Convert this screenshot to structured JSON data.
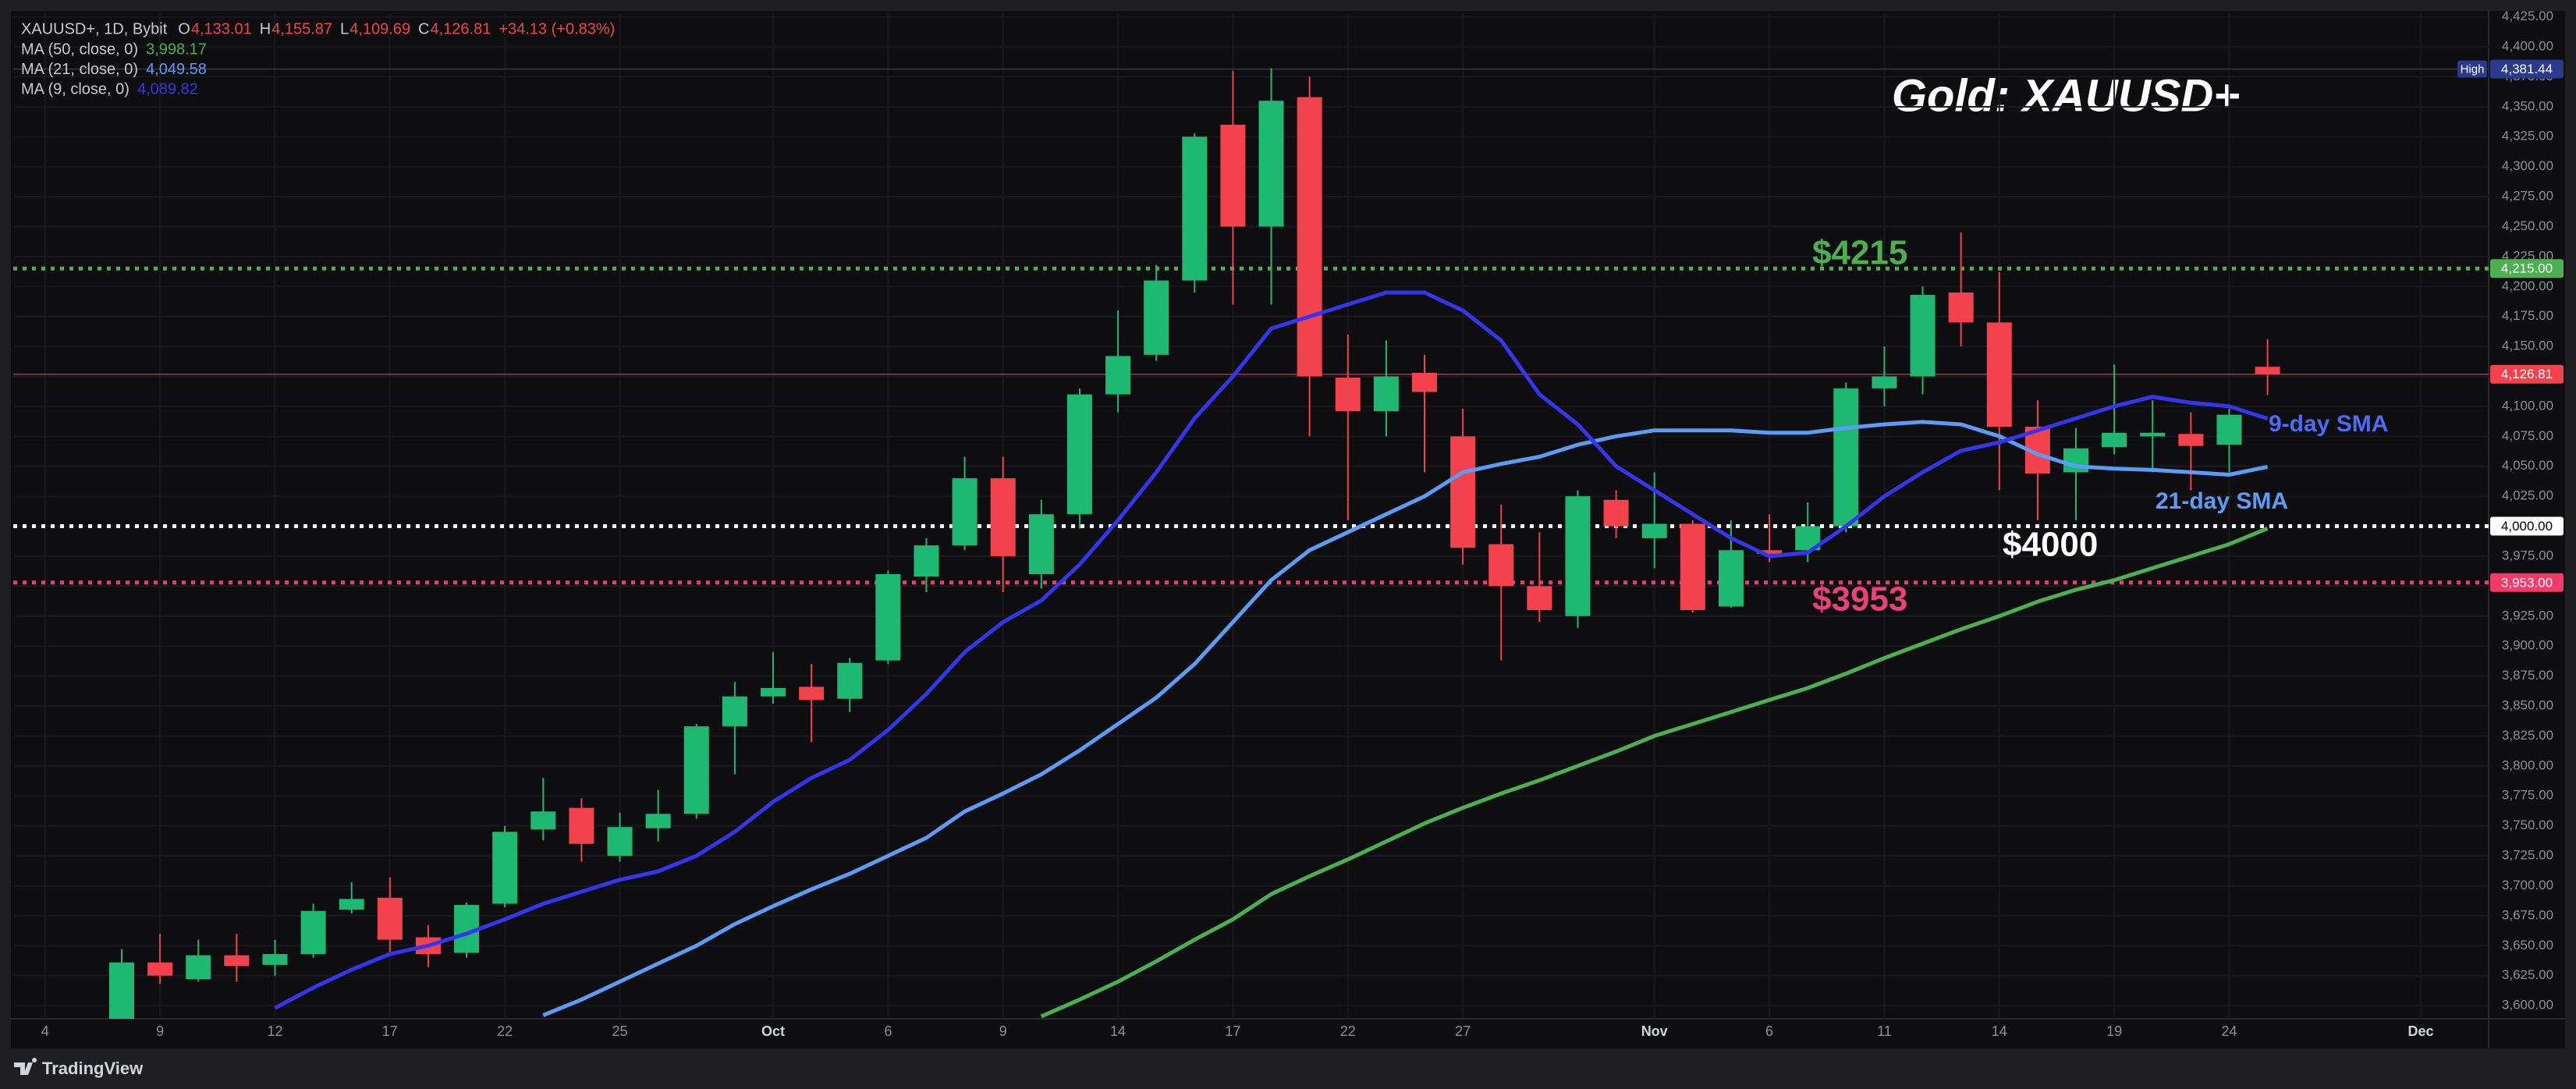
{
  "chart_data": {
    "type": "candlestick",
    "title": "Gold: XAUUSD+",
    "symbol": "XAUUSD+, 1D, Bybit",
    "ohlc": [
      {
        "key": "O",
        "label": "4,133.01"
      },
      {
        "key": "H",
        "label": "4,155.87"
      },
      {
        "key": "L",
        "label": "4,109.69"
      },
      {
        "key": "C",
        "label": "4,126.81"
      }
    ],
    "change": "+34.13 (+0.83%)",
    "up_color": "#1fb872",
    "down_color": "#f2424e",
    "open": [
      3587,
      3636,
      3622,
      3642,
      3634,
      3643,
      3680,
      3690,
      3657,
      3644,
      3685,
      3747,
      3765,
      3725,
      3748,
      3760,
      3833,
      3858,
      3866,
      3856,
      3888,
      3958,
      3984,
      4040,
      3960,
      4010,
      4110,
      4143,
      4205,
      4335,
      4250,
      4358,
      4124,
      4096,
      4128,
      4075,
      3985,
      3950,
      3925,
      4022,
      3990,
      4002,
      3933,
      3980,
      3980,
      4000,
      4115,
      4125,
      4195,
      4170,
      4083,
      4045,
      4066,
      4075,
      4077,
      4068,
      4133.01
    ],
    "high": [
      3647,
      3660,
      3655,
      3660,
      3655,
      3685,
      3703,
      3707,
      3667,
      3686,
      3750,
      3790,
      3773,
      3761,
      3780,
      3835,
      3870,
      3895,
      3885,
      3890,
      3963,
      3990,
      4058,
      4058,
      4022,
      4115,
      4180,
      4218,
      4328,
      4380,
      4382,
      4375,
      4160,
      4155,
      4143,
      4098,
      4018,
      3995,
      4030,
      4030,
      4045,
      4005,
      4005,
      4010,
      4020,
      4120,
      4150,
      4200,
      4245,
      4212,
      4105,
      4082,
      4135,
      4105,
      4095,
      4098,
      4155.87
    ],
    "low": [
      3580,
      3618,
      3620,
      3620,
      3625,
      3640,
      3677,
      3645,
      3632,
      3640,
      3682,
      3738,
      3720,
      3720,
      3737,
      3756,
      3793,
      3852,
      3820,
      3845,
      3885,
      3945,
      3980,
      3945,
      3948,
      3998,
      4095,
      4138,
      4195,
      4185,
      4185,
      4075,
      4005,
      4075,
      4045,
      3968,
      3888,
      3920,
      3915,
      3990,
      3965,
      3928,
      3932,
      3970,
      3970,
      3995,
      4100,
      4110,
      4150,
      4030,
      4005,
      4005,
      4060,
      4045,
      4030,
      4045,
      4109.69
    ],
    "close": [
      3636,
      3625,
      3642,
      3633,
      3643,
      3679,
      3689,
      3655,
      3643,
      3684,
      3745,
      3762,
      3735,
      3749,
      3760,
      3833,
      3858,
      3865,
      3855,
      3886,
      3960,
      3984,
      4040,
      3975,
      4010,
      4110,
      4142,
      4205,
      4325,
      4250,
      4355,
      4125,
      4096,
      4125,
      4112,
      3982,
      3950,
      3930,
      4025,
      4000,
      4002,
      3930,
      3980,
      3977,
      4000,
      4115,
      4125,
      4193,
      4170,
      4083,
      4044,
      4065,
      4078,
      4078,
      4067,
      4093,
      4126.81
    ],
    "series": [
      {
        "name": "MA (50, close, 0)",
        "color": "#4caf50",
        "value_label": "3,998.17",
        "values": [
          null,
          null,
          null,
          null,
          null,
          null,
          null,
          null,
          null,
          null,
          null,
          null,
          null,
          null,
          null,
          null,
          null,
          null,
          null,
          null,
          null,
          null,
          null,
          null,
          3591,
          3605,
          3620,
          3637,
          3655,
          3672,
          3693,
          3708,
          3722,
          3737,
          3752,
          3765,
          3777,
          3788,
          3800,
          3812,
          3825,
          3835,
          3845,
          3855,
          3865,
          3877,
          3890,
          3902,
          3914,
          3925,
          3937,
          3947,
          3955,
          3965,
          3975,
          3985,
          3998.17
        ]
      },
      {
        "name": "MA (21, close, 0)",
        "color": "#5b9cf6",
        "value_label": "4,049.58",
        "values": [
          null,
          null,
          null,
          null,
          null,
          null,
          null,
          null,
          null,
          null,
          null,
          3592,
          3605,
          3620,
          3635,
          3650,
          3668,
          3683,
          3697,
          3710,
          3725,
          3740,
          3762,
          3777,
          3793,
          3813,
          3835,
          3857,
          3885,
          3920,
          3955,
          3980,
          3995,
          4010,
          4025,
          4045,
          4052,
          4058,
          4068,
          4075,
          4080,
          4080,
          4080,
          4078,
          4078,
          4082,
          4085,
          4087,
          4085,
          4075,
          4060,
          4050,
          4048,
          4047,
          4045,
          4043,
          4049.58
        ]
      },
      {
        "name": "MA (9, close, 0)",
        "color": "#3535ee",
        "value_label": "4,089.82",
        "values": [
          null,
          null,
          null,
          null,
          3598,
          3615,
          3630,
          3643,
          3650,
          3660,
          3672,
          3685,
          3695,
          3705,
          3712,
          3725,
          3745,
          3770,
          3790,
          3805,
          3830,
          3860,
          3895,
          3920,
          3938,
          3968,
          4005,
          4045,
          4090,
          4125,
          4165,
          4175,
          4185,
          4195,
          4195,
          4180,
          4155,
          4110,
          4085,
          4050,
          4030,
          4010,
          3990,
          3975,
          3978,
          4000,
          4025,
          4045,
          4063,
          4070,
          4080,
          4090,
          4100,
          4108,
          4103,
          4100,
          4089.82
        ]
      }
    ],
    "levels": [
      {
        "value": 4215,
        "label": "4,215.00",
        "color": "#4caf50",
        "dotted": true
      },
      {
        "value": 4000,
        "label": "4,000.00",
        "color": "#ffffff",
        "dotted": true
      },
      {
        "value": 3953,
        "label": "3,953.00",
        "color": "#f23b6b",
        "dotted": true
      },
      {
        "value": 4126.81,
        "label": "4,126.81",
        "color": "#f2424e",
        "dotted": false
      }
    ],
    "high_mark": {
      "tag": "High",
      "value": 4381.44,
      "label": "4,381.44",
      "color": "#2b3a8c"
    },
    "annotations": [
      {
        "text": "$4215",
        "color": "#4caf50"
      },
      {
        "text": "$4000",
        "color": "#ffffff"
      },
      {
        "text": "$3953",
        "color": "#ec407a"
      },
      {
        "text": "9-day SMA",
        "color": "#4a6cf7"
      },
      {
        "text": "21-day SMA",
        "color": "#5b9cf6"
      }
    ],
    "branding": "TradingView",
    "xlim": [
      -2.83,
      61.77
    ],
    "xticks": [
      {
        "value": -2,
        "label": "4"
      },
      {
        "value": 1,
        "label": "9"
      },
      {
        "value": 4,
        "label": "12"
      },
      {
        "value": 7,
        "label": "17"
      },
      {
        "value": 10,
        "label": "22"
      },
      {
        "value": 13,
        "label": "25"
      },
      {
        "value": 17,
        "label": "Oct"
      },
      {
        "value": 20,
        "label": "6"
      },
      {
        "value": 23,
        "label": "9"
      },
      {
        "value": 26,
        "label": "14"
      },
      {
        "value": 29,
        "label": "17"
      },
      {
        "value": 32,
        "label": "22"
      },
      {
        "value": 35,
        "label": "27"
      },
      {
        "value": 40,
        "label": "Nov"
      },
      {
        "value": 43,
        "label": "6"
      },
      {
        "value": 46,
        "label": "11"
      },
      {
        "value": 49,
        "label": "14"
      },
      {
        "value": 52,
        "label": "19"
      },
      {
        "value": 55,
        "label": "24"
      },
      {
        "value": 60,
        "label": "Dec"
      }
    ],
    "ylim": [
      3589,
      4428
    ],
    "yticks": [
      {
        "value": 3600,
        "label": "3,600.00"
      },
      {
        "value": 3625,
        "label": "3,625.00"
      },
      {
        "value": 3650,
        "label": "3,650.00"
      },
      {
        "value": 3675,
        "label": "3,675.00"
      },
      {
        "value": 3700,
        "label": "3,700.00"
      },
      {
        "value": 3725,
        "label": "3,725.00"
      },
      {
        "value": 3750,
        "label": "3,750.00"
      },
      {
        "value": 3775,
        "label": "3,775.00"
      },
      {
        "value": 3800,
        "label": "3,800.00"
      },
      {
        "value": 3825,
        "label": "3,825.00"
      },
      {
        "value": 3850,
        "label": "3,850.00"
      },
      {
        "value": 3875,
        "label": "3,875.00"
      },
      {
        "value": 3900,
        "label": "3,900.00"
      },
      {
        "value": 3925,
        "label": "3,925.00"
      },
      {
        "value": 3950,
        "label": "3,950.00"
      },
      {
        "value": 3975,
        "label": "3,975.00"
      },
      {
        "value": 4000,
        "label": "4,000.00"
      },
      {
        "value": 4025,
        "label": "4,025.00"
      },
      {
        "value": 4050,
        "label": "4,050.00"
      },
      {
        "value": 4075,
        "label": "4,075.00"
      },
      {
        "value": 4100,
        "label": "4,100.00"
      },
      {
        "value": 4125,
        "label": "4,125.00"
      },
      {
        "value": 4150,
        "label": "4,150.00"
      },
      {
        "value": 4175,
        "label": "4,175.00"
      },
      {
        "value": 4200,
        "label": "4,200.00"
      },
      {
        "value": 4225,
        "label": "4,225.00"
      },
      {
        "value": 4250,
        "label": "4,250.00"
      },
      {
        "value": 4275,
        "label": "4,275.00"
      },
      {
        "value": 4300,
        "label": "4,300.00"
      },
      {
        "value": 4325,
        "label": "4,325.00"
      },
      {
        "value": 4350,
        "label": "4,350.00"
      },
      {
        "value": 4375,
        "label": "4,375.00"
      },
      {
        "value": 4400,
        "label": "4,400.00"
      },
      {
        "value": 4425,
        "label": "4,425.00"
      }
    ],
    "grid": true
  }
}
